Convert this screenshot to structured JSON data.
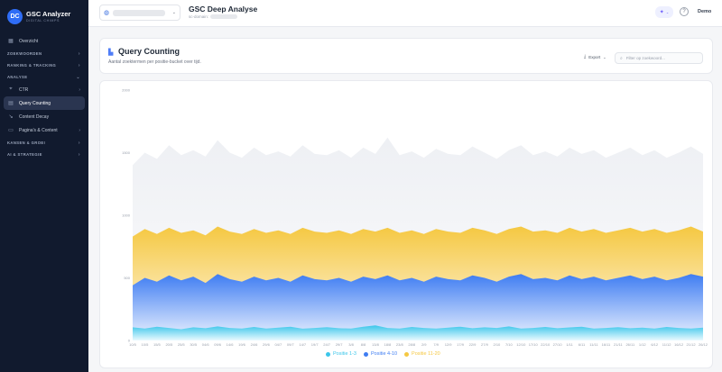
{
  "app": {
    "logo_text": "DC",
    "name": "GSC Analyzer",
    "tagline": "DIGITAL CHIMPS"
  },
  "sidebar": {
    "items": [
      {
        "type": "item",
        "label": "Overzicht",
        "icon": "grid-icon"
      },
      {
        "type": "section",
        "label": "ZOEKWOORDEN",
        "chevron": "right"
      },
      {
        "type": "section",
        "label": "RANKING & TRACKING",
        "chevron": "right"
      },
      {
        "type": "section",
        "label": "ANALYSE",
        "chevron": "down"
      },
      {
        "type": "item",
        "label": "CTR",
        "icon": "cursor-icon",
        "chevron": "right"
      },
      {
        "type": "item",
        "label": "Query Counting",
        "icon": "bar-chart-icon",
        "active": true
      },
      {
        "type": "item",
        "label": "Content Decay",
        "icon": "trend-down-icon"
      },
      {
        "type": "item",
        "label": "Pagina's & Content",
        "icon": "document-icon",
        "chevron": "right"
      },
      {
        "type": "section",
        "label": "KANSEN & GROEI",
        "chevron": "right"
      },
      {
        "type": "section",
        "label": "AI & STRATEGIE",
        "chevron": "right"
      }
    ]
  },
  "header": {
    "title": "GSC Deep Analyse",
    "subtitle_prefix": "sc-domain:",
    "user": "Demo"
  },
  "card": {
    "title": "Query Counting",
    "subtitle": "Aantal zoektermen per positie-bucket over tijd.",
    "export_label": "Export",
    "filter_placeholder": "Filter op zoekwoord..."
  },
  "chart_data": {
    "type": "area",
    "y_ticks": [
      "2000",
      "1500",
      "1000",
      "500",
      "0"
    ],
    "ylim": [
      0,
      2000
    ],
    "x_labels": [
      "10/5",
      "10/5",
      "15/5",
      "20/5",
      "25/5",
      "30/5",
      "04/6",
      "09/6",
      "14/6",
      "19/6",
      "24/6",
      "29/6",
      "04/7",
      "09/7",
      "14/7",
      "19/7",
      "24/7",
      "29/7",
      "3/8",
      "8/8",
      "13/8",
      "18/8",
      "23/8",
      "28/8",
      "2/9",
      "7/9",
      "12/9",
      "17/9",
      "22/9",
      "27/9",
      "2/10",
      "7/10",
      "12/10",
      "17/10",
      "22/10",
      "27/10",
      "1/11",
      "6/11",
      "11/11",
      "16/11",
      "21/11",
      "26/11",
      "1/12",
      "6/12",
      "11/12",
      "16/12",
      "21/12",
      "26/12"
    ],
    "series": [
      {
        "name": "Positie 1-3",
        "color": "#3cc6ea",
        "values": [
          105,
          95,
          110,
          100,
          90,
          105,
          98,
          112,
          100,
          95,
          108,
          96,
          102,
          110,
          94,
          100,
          106,
          98,
          95,
          110,
          120,
          100,
          96,
          108,
          100,
          95,
          102,
          110,
          98,
          105,
          100,
          112,
          96,
          100,
          108,
          98,
          104,
          110,
          96,
          100,
          106,
          98,
          102,
          95,
          108,
          100,
          96,
          102
        ]
      },
      {
        "name": "Positie 4-10",
        "color": "#3f7df2",
        "values": [
          440,
          500,
          470,
          520,
          480,
          510,
          460,
          530,
          490,
          470,
          510,
          480,
          500,
          470,
          520,
          490,
          480,
          500,
          470,
          510,
          490,
          520,
          480,
          500,
          470,
          510,
          490,
          480,
          520,
          500,
          470,
          510,
          530,
          490,
          500,
          480,
          520,
          490,
          510,
          480,
          500,
          520,
          490,
          510,
          480,
          500,
          530,
          510
        ]
      },
      {
        "name": "Positie 11-20",
        "color": "#f5c842",
        "values": [
          830,
          890,
          850,
          900,
          860,
          880,
          840,
          910,
          870,
          850,
          890,
          860,
          880,
          850,
          900,
          870,
          860,
          880,
          850,
          890,
          870,
          900,
          860,
          880,
          850,
          890,
          870,
          860,
          900,
          880,
          850,
          890,
          910,
          870,
          880,
          860,
          900,
          870,
          890,
          860,
          880,
          900,
          870,
          890,
          860,
          880,
          910,
          870
        ]
      },
      {
        "name": "",
        "color": "#eef0f4",
        "values": [
          1400,
          1500,
          1450,
          1560,
          1480,
          1520,
          1470,
          1600,
          1500,
          1460,
          1540,
          1480,
          1510,
          1470,
          1560,
          1490,
          1480,
          1520,
          1460,
          1540,
          1490,
          1620,
          1480,
          1510,
          1460,
          1530,
          1490,
          1480,
          1550,
          1500,
          1450,
          1520,
          1560,
          1480,
          1510,
          1470,
          1540,
          1490,
          1520,
          1460,
          1500,
          1540,
          1480,
          1520,
          1460,
          1500,
          1550,
          1490
        ]
      }
    ],
    "legend": [
      "Positie 1-3",
      "Positie 4-10",
      "Positie 11-20"
    ],
    "grid": false,
    "legend_position": "bottom-center"
  }
}
